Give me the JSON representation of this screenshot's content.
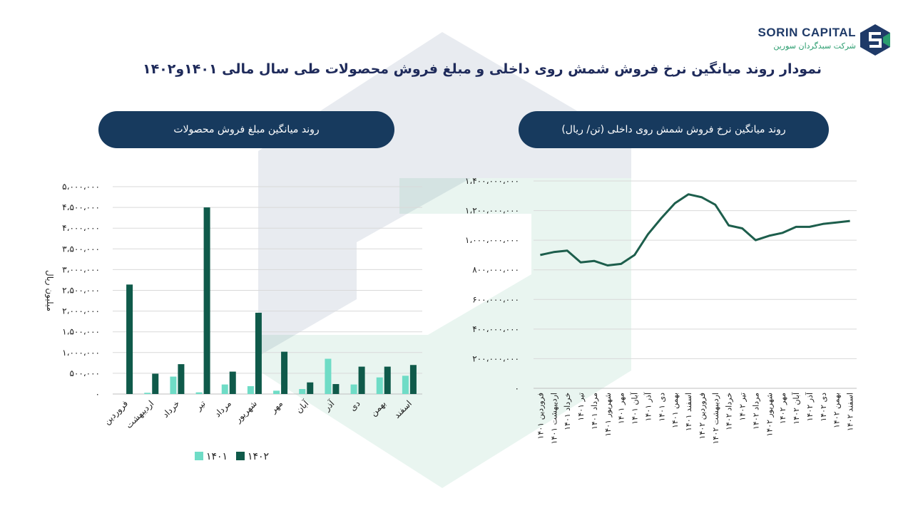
{
  "header": {
    "logo_title": "SORIN CAPITAL",
    "logo_subtitle": "شرکت سبدگردان سورین",
    "main_title": "نمودار روند میانگین نرخ فروش شمش روی داخلی و مبلغ فروش محصولات طی سال مالی ۱۴۰۱و۱۴۰۲"
  },
  "colors": {
    "series_1401": "#6fdcc6",
    "series_1402": "#0f5a4a",
    "line": "#1d5e4c",
    "pill": "#173a5e",
    "grid": "#d9d9d9"
  },
  "chart_data": [
    {
      "type": "bar",
      "title": "روند میانگین مبلغ فروش محصولات",
      "ylabel": "میلیون ریال",
      "xlabel": "",
      "ylim": [
        0,
        5000000
      ],
      "y_ticks": [
        "۰",
        "۵۰۰،۰۰۰",
        "۱،۰۰۰،۰۰۰",
        "۱،۵۰۰،۰۰۰",
        "۲،۰۰۰،۰۰۰",
        "۲،۵۰۰،۰۰۰",
        "۳،۰۰۰،۰۰۰",
        "۳،۵۰۰،۰۰۰",
        "۴،۰۰۰،۰۰۰",
        "۴،۵۰۰،۰۰۰",
        "۵،۰۰۰،۰۰۰"
      ],
      "y_tick_values": [
        0,
        500000,
        1000000,
        1500000,
        2000000,
        2500000,
        3000000,
        3500000,
        4000000,
        4500000,
        5000000
      ],
      "categories": [
        "فروردین",
        "اردیبهشت",
        "خرداد",
        "تیر",
        "مرداد",
        "شهریور",
        "مهر",
        "آبان",
        "آذر",
        "دی",
        "بهمن",
        "اسفند"
      ],
      "series": [
        {
          "name": "۱۴۰۱",
          "values": [
            0,
            30000,
            420000,
            40000,
            230000,
            190000,
            80000,
            120000,
            850000,
            230000,
            400000,
            440000
          ]
        },
        {
          "name": "۱۴۰۲",
          "values": [
            2640000,
            490000,
            720000,
            4500000,
            540000,
            1960000,
            1020000,
            280000,
            240000,
            660000,
            660000,
            700000
          ]
        }
      ],
      "legend_position": "bottom",
      "grid": true
    },
    {
      "type": "line",
      "title": "روند میانگین نرخ فروش شمش روی داخلی (تن/ ریال)",
      "xlabel": "",
      "ylabel": "",
      "ylim": [
        0,
        1400000000
      ],
      "y_ticks": [
        "۰",
        "۲۰۰،۰۰۰،۰۰۰",
        "۴۰۰،۰۰۰،۰۰۰",
        "۶۰۰،۰۰۰،۰۰۰",
        "۸۰۰،۰۰۰،۰۰۰",
        "۱،۰۰۰،۰۰۰،۰۰۰",
        "۱،۲۰۰،۰۰۰،۰۰۰",
        "۱،۴۰۰،۰۰۰،۰۰۰"
      ],
      "y_tick_values": [
        0,
        200000000,
        400000000,
        600000000,
        800000000,
        1000000000,
        1200000000,
        1400000000
      ],
      "categories": [
        "فروردین ۱۴۰۱",
        "اردیبهشت ۱۴۰۱",
        "خرداد ۱۴۰۱",
        "تیر ۱۴۰۱",
        "مرداد ۱۴۰۱",
        "شهریور ۱۴۰۱",
        "مهر ۱۴۰۱",
        "آبان ۱۴۰۱",
        "آذر ۱۴۰۱",
        "دی ۱۴۰۱",
        "بهمن ۱۴۰۱",
        "اسفند ۱۴۰۱",
        "فروردین ۱۴۰۲",
        "اردیبهشت ۱۴۰۲",
        "خرداد ۱۴۰۲",
        "تیر ۱۴۰۲",
        "مرداد ۱۴۰۲",
        "شهریور ۱۴۰۲",
        "مهر ۱۴۰۲",
        "آبان ۱۴۰۲",
        "آذر ۱۴۰۲",
        "دی ۱۴۰۲",
        "بهمن ۱۴۰۲",
        "اسفند ۱۴۰۲"
      ],
      "series": [
        {
          "name": "",
          "values": [
            900000000,
            920000000,
            930000000,
            850000000,
            860000000,
            830000000,
            840000000,
            900000000,
            1040000000,
            1150000000,
            1250000000,
            1310000000,
            1290000000,
            1240000000,
            1100000000,
            1080000000,
            1000000000,
            1030000000,
            1050000000,
            1090000000,
            1090000000,
            1110000000,
            1120000000,
            1130000000
          ]
        }
      ],
      "grid": true
    }
  ]
}
